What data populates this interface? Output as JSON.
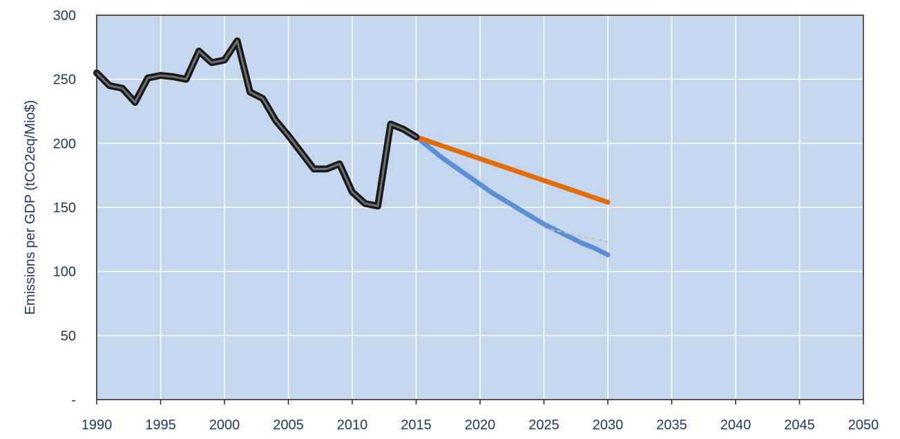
{
  "chart_data": {
    "type": "line",
    "title": "",
    "xlabel": "",
    "ylabel": "Emissions per GDP (tCO2eq/Mio$)",
    "xlim": [
      1990,
      2050
    ],
    "ylim": [
      0,
      300
    ],
    "x_ticks": [
      1990,
      1995,
      2000,
      2005,
      2010,
      2015,
      2020,
      2025,
      2030,
      2035,
      2040,
      2045,
      2050
    ],
    "y_ticks": [
      {
        "value": 0,
        "label": "-"
      },
      {
        "value": 50,
        "label": "50"
      },
      {
        "value": 100,
        "label": "100"
      },
      {
        "value": 150,
        "label": "150"
      },
      {
        "value": 200,
        "label": "200"
      },
      {
        "value": 250,
        "label": "250"
      },
      {
        "value": 300,
        "label": "300"
      }
    ],
    "grid": true,
    "legend": "none",
    "plot_background": "#c5d7ef",
    "series": [
      {
        "color": "#5b8fd6",
        "points": [
          [
            2010,
            162
          ],
          [
            2011,
            153
          ],
          [
            2012,
            151
          ],
          [
            2013,
            215
          ],
          [
            2014,
            211
          ],
          [
            2015,
            205
          ],
          [
            2016,
            197
          ],
          [
            2017,
            189
          ],
          [
            2018,
            182
          ],
          [
            2019,
            175
          ],
          [
            2020,
            168
          ],
          [
            2021,
            161
          ],
          [
            2022,
            155
          ],
          [
            2023,
            149
          ],
          [
            2024,
            143
          ],
          [
            2025,
            137
          ],
          [
            2026,
            132
          ],
          [
            2027,
            127
          ],
          [
            2028,
            122
          ],
          [
            2029,
            118
          ],
          [
            2030,
            113
          ]
        ]
      },
      {
        "color": "#e36c0a",
        "points": [
          [
            2015,
            205
          ],
          [
            2020,
            188
          ],
          [
            2025,
            171
          ],
          [
            2030,
            154
          ]
        ]
      },
      {
        "color": "#bfbfbf",
        "dashed": true,
        "points": [
          [
            2025,
            134
          ],
          [
            2030,
            123
          ]
        ]
      },
      {
        "color": "#1a1a1a",
        "outline": true,
        "points": [
          [
            1990,
            255
          ],
          [
            1991,
            245
          ],
          [
            1992,
            243
          ],
          [
            1993,
            232
          ],
          [
            1994,
            251
          ],
          [
            1995,
            253
          ],
          [
            1996,
            252
          ],
          [
            1997,
            250
          ],
          [
            1998,
            272
          ],
          [
            1999,
            263
          ],
          [
            2000,
            265
          ],
          [
            2001,
            280
          ],
          [
            2002,
            240
          ],
          [
            2003,
            235
          ],
          [
            2004,
            218
          ],
          [
            2005,
            206
          ],
          [
            2006,
            193
          ],
          [
            2007,
            180
          ],
          [
            2008,
            180
          ],
          [
            2009,
            184
          ],
          [
            2010,
            162
          ],
          [
            2011,
            153
          ],
          [
            2012,
            151
          ],
          [
            2013,
            215
          ],
          [
            2014,
            211
          ],
          [
            2015,
            205
          ]
        ]
      }
    ]
  }
}
